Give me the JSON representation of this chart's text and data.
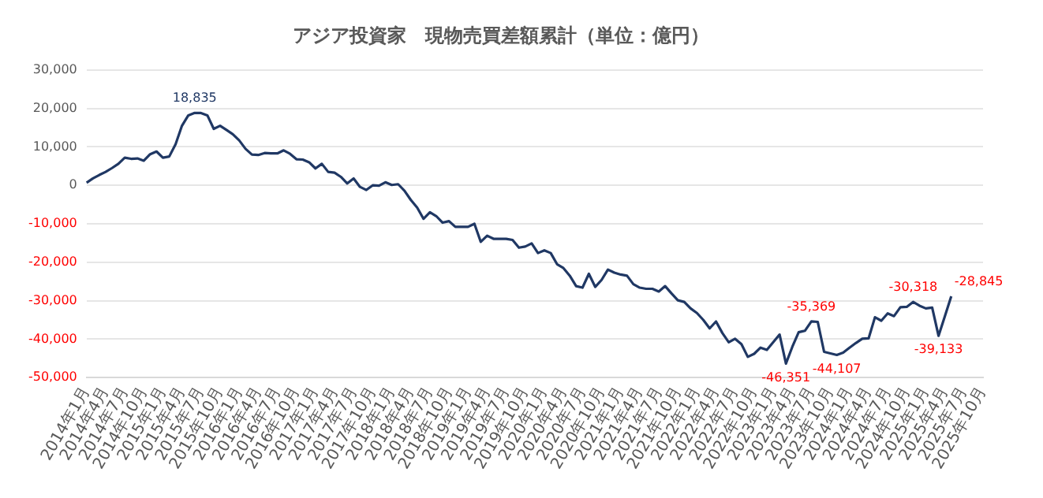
{
  "chart_data": {
    "type": "line",
    "title": "アジア投資家　現物売買差額累計（単位：億円）",
    "categories": [
      "2014年1月",
      null,
      null,
      "2014年4月",
      null,
      null,
      "2014年7月",
      null,
      null,
      "2014年10月",
      null,
      null,
      "2015年1月",
      null,
      null,
      "2015年4月",
      null,
      null,
      "2015年7月",
      null,
      null,
      "2015年10月",
      null,
      null,
      "2016年1月",
      null,
      null,
      "2016年4月",
      null,
      null,
      "2016年7月",
      null,
      null,
      "2016年10月",
      null,
      null,
      "2017年1月",
      null,
      null,
      "2017年4月",
      null,
      null,
      "2017年7月",
      null,
      null,
      "2017年10月",
      null,
      null,
      "2018年1月",
      null,
      null,
      "2018年4月",
      null,
      null,
      "2018年7月",
      null,
      null,
      "2018年10月",
      null,
      null,
      "2019年1月",
      null,
      null,
      "2019年4月",
      null,
      null,
      "2019年7月",
      null,
      null,
      "2019年10月",
      null,
      null,
      "2020年1月",
      null,
      null,
      "2020年4月",
      null,
      null,
      "2020年7月",
      null,
      null,
      "2020年10月",
      null,
      null,
      "2021年1月",
      null,
      null,
      "2021年4月",
      null,
      null,
      "2021年7月",
      null,
      null,
      "2021年10月",
      null,
      null,
      "2022年1月",
      null,
      null,
      "2022年4月",
      null,
      null,
      "2022年7月",
      null,
      null,
      "2022年10月",
      null,
      null,
      "2023年1月",
      null,
      null,
      "2023年4月",
      null,
      null,
      "2023年7月",
      null,
      null,
      "2023年10月",
      null,
      null,
      "2024年1月",
      null,
      null,
      "2024年4月",
      null,
      null,
      "2024年7月",
      null,
      null,
      "2024年10月",
      null,
      null,
      "2025年1月",
      null,
      null,
      "2025年4月",
      null,
      null,
      "2025年7月",
      null,
      null,
      "2025年10月"
    ],
    "series": [
      {
        "color": "#203864",
        "values": [
          700,
          1800,
          2700,
          3500,
          4500,
          5600,
          7200,
          6900,
          7000,
          6400,
          8100,
          8800,
          7200,
          7500,
          10700,
          15500,
          18200,
          18835,
          18800,
          18200,
          14700,
          15500,
          14400,
          13300,
          11700,
          9500,
          8000,
          7900,
          8400,
          8300,
          8300,
          9100,
          8200,
          6800,
          6700,
          6000,
          4400,
          5600,
          3500,
          3300,
          2200,
          500,
          1800,
          -400,
          -1200,
          0,
          -100,
          800,
          100,
          300,
          -1400,
          -3800,
          -5800,
          -8700,
          -7000,
          -8000,
          -9700,
          -9300,
          -10800,
          -10800,
          -10800,
          -10000,
          -14700,
          -13100,
          -13900,
          -13900,
          -13900,
          -14200,
          -16200,
          -15900,
          -15100,
          -17600,
          -16900,
          -17600,
          -20500,
          -21500,
          -23500,
          -26200,
          -26600,
          -23000,
          -26400,
          -24600,
          -21900,
          -22700,
          -23200,
          -23500,
          -25700,
          -26600,
          -26900,
          -26900,
          -27600,
          -26200,
          -28100,
          -29900,
          -30300,
          -32000,
          -33200,
          -35000,
          -37200,
          -35400,
          -38400,
          -40800,
          -39900,
          -41300,
          -44600,
          -43800,
          -42200,
          -42800,
          -40800,
          -38800,
          -46351,
          -42000,
          -38200,
          -37800,
          -35369,
          -35500,
          -43300,
          -43700,
          -44107,
          -43500,
          -42200,
          -41000,
          -39900,
          -39800,
          -34300,
          -35200,
          -33300,
          -34000,
          -31700,
          -31600,
          -30318,
          -31300,
          -32000,
          -31800,
          -39133,
          -34000,
          -28845,
          null,
          null,
          null,
          null,
          null
        ],
        "value_labels": [
          null,
          null,
          null,
          null,
          null,
          null,
          null,
          null,
          null,
          null,
          null,
          null,
          null,
          null,
          null,
          null,
          null,
          "18,835",
          null,
          null,
          null,
          null,
          null,
          null,
          null,
          null,
          null,
          null,
          null,
          null,
          null,
          null,
          null,
          null,
          null,
          null,
          null,
          null,
          null,
          null,
          null,
          null,
          null,
          null,
          null,
          null,
          null,
          null,
          null,
          null,
          null,
          null,
          null,
          null,
          null,
          null,
          null,
          null,
          null,
          null,
          null,
          null,
          null,
          null,
          null,
          null,
          null,
          null,
          null,
          null,
          null,
          null,
          null,
          null,
          null,
          null,
          null,
          null,
          null,
          null,
          null,
          null,
          null,
          null,
          null,
          null,
          null,
          null,
          null,
          null,
          null,
          null,
          null,
          null,
          null,
          null,
          null,
          null,
          null,
          null,
          null,
          null,
          null,
          null,
          null,
          null,
          null,
          null,
          null,
          null,
          "-46,351",
          null,
          null,
          null,
          "-35,369",
          null,
          null,
          null,
          "-44,107",
          null,
          null,
          null,
          null,
          null,
          null,
          null,
          null,
          null,
          null,
          null,
          "-30,318",
          null,
          null,
          null,
          "-39,133",
          null,
          "-28,845",
          null,
          null,
          null,
          null,
          null
        ]
      }
    ],
    "ylim": [
      -50000,
      30000
    ],
    "yticks": [
      {
        "value": -50000,
        "label": "-50,000"
      },
      {
        "value": -40000,
        "label": "-40,000"
      },
      {
        "value": -30000,
        "label": "-30,000"
      },
      {
        "value": -20000,
        "label": "-20,000"
      },
      {
        "value": -10000,
        "label": "-10,000"
      },
      0,
      {
        "value": 10000,
        "label": "10,000"
      },
      {
        "value": 20000,
        "label": "20,000"
      },
      {
        "value": 30000,
        "label": "30,000"
      }
    ],
    "grid": "y",
    "legend": false,
    "marker": "none",
    "line_style": "solid"
  }
}
